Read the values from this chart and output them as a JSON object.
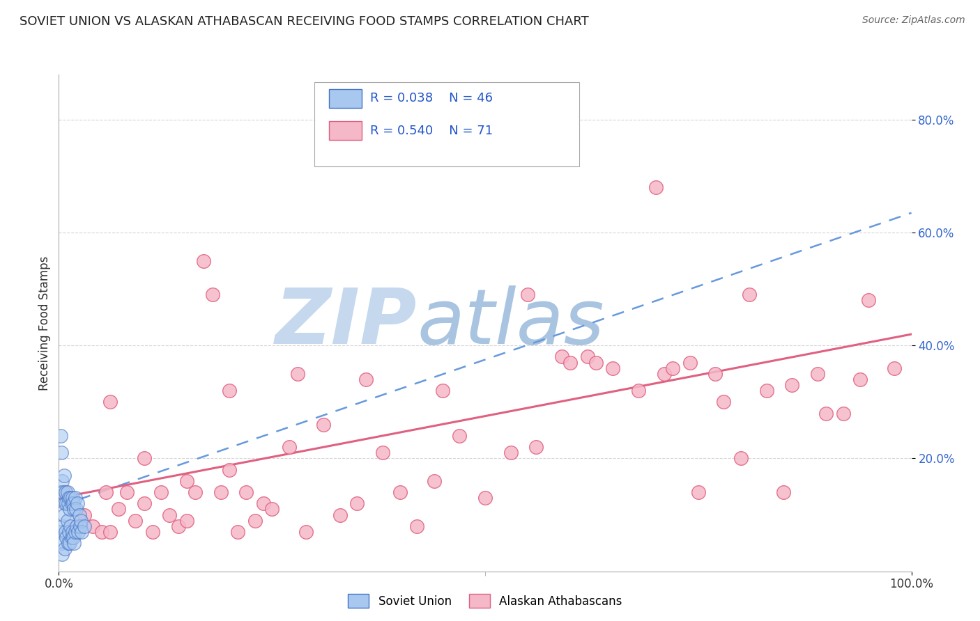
{
  "title": "SOVIET UNION VS ALASKAN ATHABASCAN RECEIVING FOOD STAMPS CORRELATION CHART",
  "source": "Source: ZipAtlas.com",
  "ylabel": "Receiving Food Stamps",
  "xlim": [
    0,
    1.0
  ],
  "ylim": [
    0,
    0.88
  ],
  "legend_r1": "R = 0.038",
  "legend_n1": "N = 46",
  "legend_r2": "R = 0.540",
  "legend_n2": "N = 71",
  "soviet_fill": "#A8C8F0",
  "soviet_edge": "#4472C4",
  "athabascan_fill": "#F5B8C8",
  "athabascan_edge": "#E06080",
  "trend1_color": "#6699DD",
  "trend2_color": "#E06080",
  "watermark_zip_color": "#C5D8EE",
  "watermark_atlas_color": "#A0BCD8",
  "tick_color": "#3366CC",
  "grid_color": "#CCCCCC",
  "soviet_points_x": [
    0.001,
    0.002,
    0.002,
    0.003,
    0.003,
    0.004,
    0.004,
    0.005,
    0.005,
    0.006,
    0.006,
    0.007,
    0.007,
    0.008,
    0.008,
    0.009,
    0.009,
    0.01,
    0.01,
    0.011,
    0.011,
    0.012,
    0.012,
    0.013,
    0.013,
    0.014,
    0.014,
    0.015,
    0.015,
    0.016,
    0.016,
    0.017,
    0.017,
    0.018,
    0.018,
    0.019,
    0.019,
    0.02,
    0.021,
    0.022,
    0.023,
    0.024,
    0.025,
    0.026,
    0.027,
    0.03
  ],
  "soviet_points_y": [
    0.14,
    0.24,
    0.07,
    0.21,
    0.05,
    0.16,
    0.03,
    0.14,
    0.08,
    0.17,
    0.1,
    0.12,
    0.04,
    0.14,
    0.07,
    0.12,
    0.06,
    0.14,
    0.09,
    0.12,
    0.05,
    0.13,
    0.07,
    0.11,
    0.05,
    0.13,
    0.08,
    0.12,
    0.06,
    0.13,
    0.07,
    0.12,
    0.06,
    0.11,
    0.05,
    0.13,
    0.07,
    0.11,
    0.08,
    0.12,
    0.07,
    0.1,
    0.08,
    0.09,
    0.07,
    0.08
  ],
  "athabascan_points_x": [
    0.008,
    0.02,
    0.03,
    0.04,
    0.05,
    0.055,
    0.06,
    0.07,
    0.08,
    0.09,
    0.1,
    0.11,
    0.12,
    0.13,
    0.14,
    0.15,
    0.16,
    0.17,
    0.18,
    0.19,
    0.2,
    0.21,
    0.22,
    0.23,
    0.24,
    0.25,
    0.27,
    0.29,
    0.31,
    0.33,
    0.35,
    0.38,
    0.4,
    0.42,
    0.44,
    0.47,
    0.5,
    0.53,
    0.56,
    0.59,
    0.62,
    0.65,
    0.68,
    0.71,
    0.74,
    0.77,
    0.8,
    0.83,
    0.86,
    0.89,
    0.92,
    0.95,
    0.98,
    0.06,
    0.1,
    0.15,
    0.2,
    0.28,
    0.36,
    0.45,
    0.55,
    0.63,
    0.72,
    0.81,
    0.9,
    0.94,
    0.75,
    0.85,
    0.6,
    0.7,
    0.78
  ],
  "athabascan_points_y": [
    0.14,
    0.08,
    0.1,
    0.08,
    0.07,
    0.14,
    0.07,
    0.11,
    0.14,
    0.09,
    0.12,
    0.07,
    0.14,
    0.1,
    0.08,
    0.16,
    0.14,
    0.55,
    0.49,
    0.14,
    0.18,
    0.07,
    0.14,
    0.09,
    0.12,
    0.11,
    0.22,
    0.07,
    0.26,
    0.1,
    0.12,
    0.21,
    0.14,
    0.08,
    0.16,
    0.24,
    0.13,
    0.21,
    0.22,
    0.38,
    0.38,
    0.36,
    0.32,
    0.35,
    0.37,
    0.35,
    0.2,
    0.32,
    0.33,
    0.35,
    0.28,
    0.48,
    0.36,
    0.3,
    0.2,
    0.09,
    0.32,
    0.35,
    0.34,
    0.32,
    0.49,
    0.37,
    0.36,
    0.49,
    0.28,
    0.34,
    0.14,
    0.14,
    0.37,
    0.68,
    0.3
  ],
  "trend1_x0": 0.0,
  "trend1_y0": 0.115,
  "trend1_x1": 1.0,
  "trend1_y1": 0.635,
  "trend2_x0": 0.0,
  "trend2_y0": 0.13,
  "trend2_x1": 1.0,
  "trend2_y1": 0.42
}
